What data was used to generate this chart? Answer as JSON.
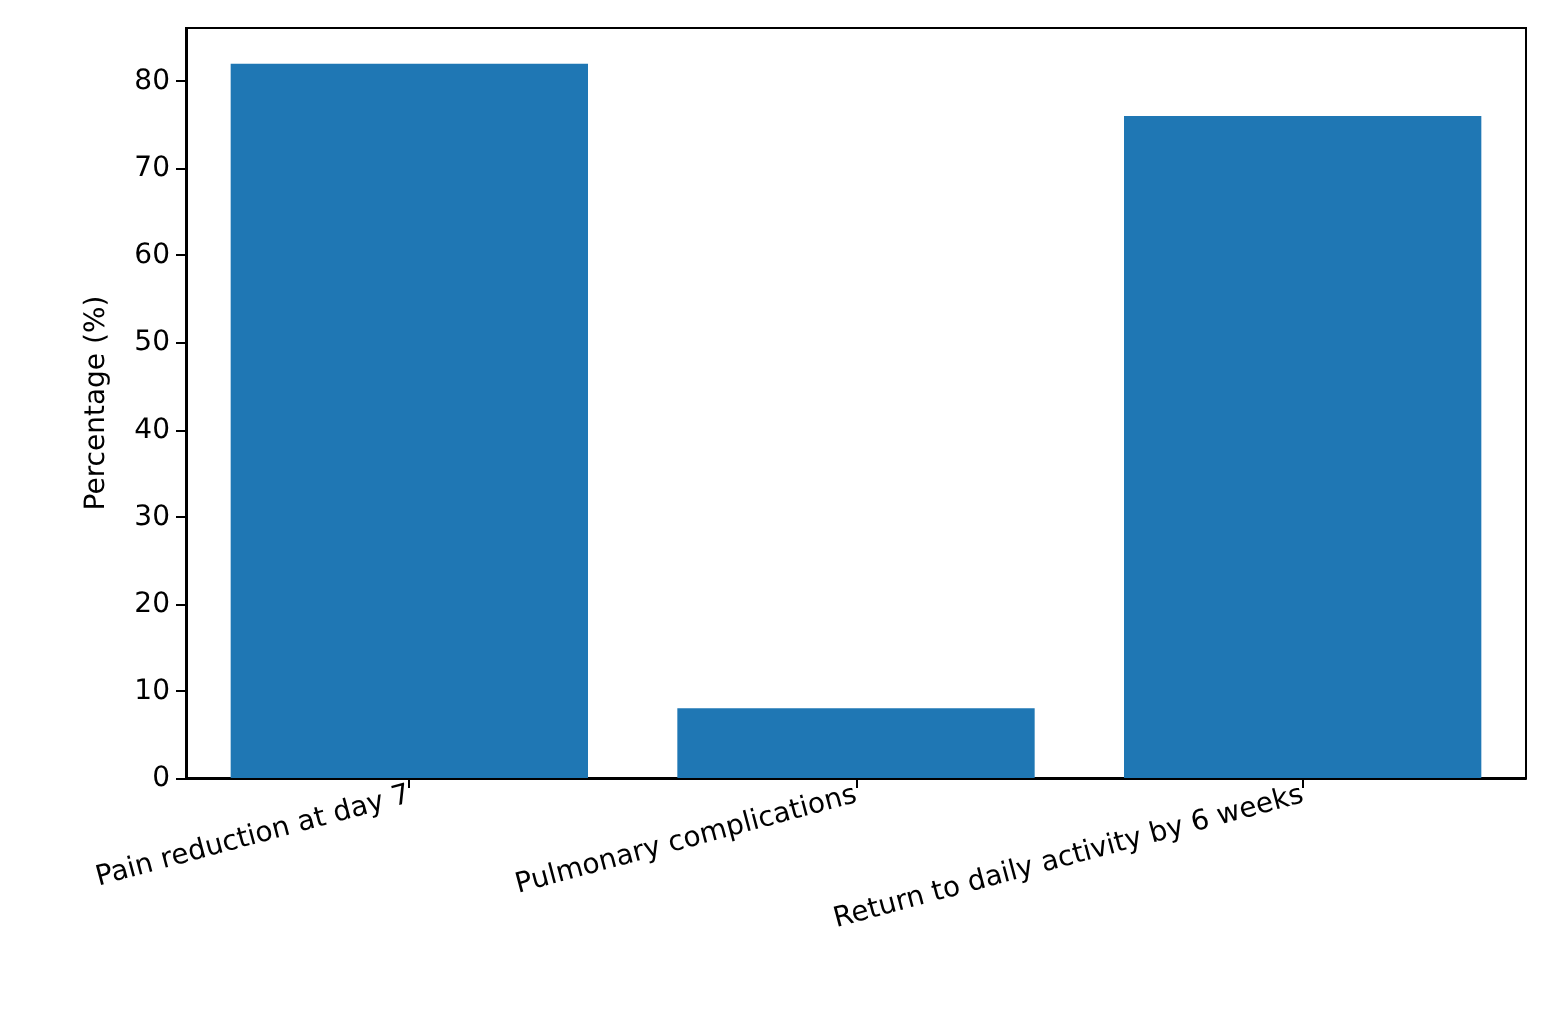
{
  "chart_data": {
    "type": "bar",
    "ylabel": "Percentage (%)",
    "categories": [
      "Pain reduction at day 7",
      "Pulmonary complications",
      "Return to daily activity by 6 weeks"
    ],
    "values": [
      82,
      8,
      76
    ],
    "color": "#1f77b4",
    "ylim": [
      0,
      86.1
    ],
    "yticks": [
      0,
      10,
      20,
      30,
      40,
      50,
      60,
      70,
      80
    ],
    "grid": false
  }
}
